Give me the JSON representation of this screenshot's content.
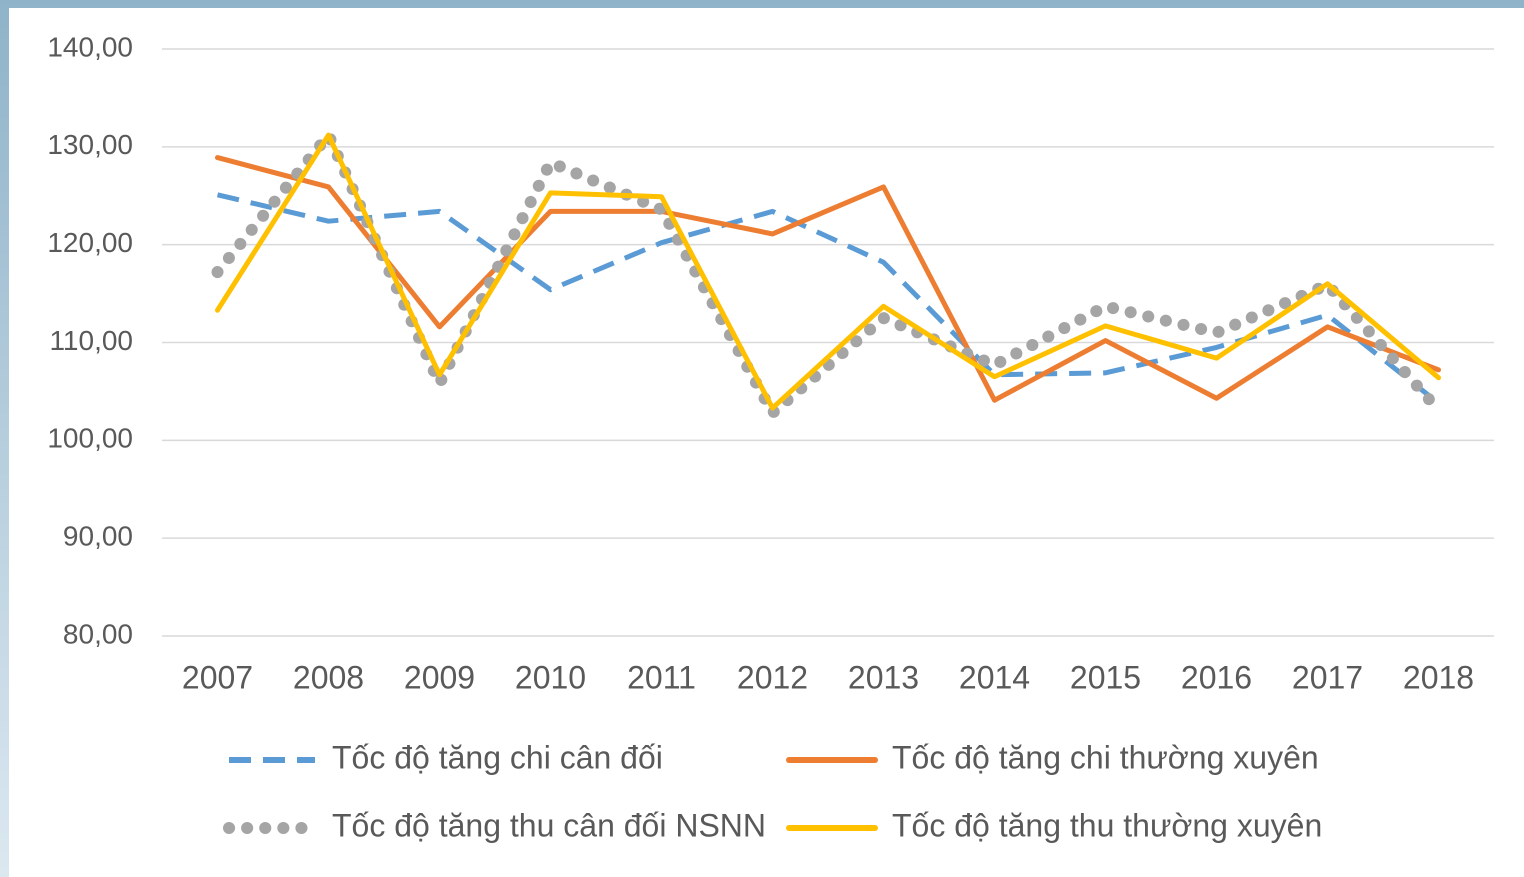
{
  "chart_data": {
    "type": "line",
    "categories": [
      "2007",
      "2008",
      "2009",
      "2010",
      "2011",
      "2012",
      "2013",
      "2014",
      "2015",
      "2016",
      "2017",
      "2018"
    ],
    "series": [
      {
        "name": "Tốc độ tăng chi cân đối",
        "color": "#5b9bd5",
        "style": "dashed",
        "values": [
          125.1,
          122.4,
          123.4,
          115.4,
          120.2,
          123.4,
          118.2,
          106.7,
          106.9,
          109.5,
          112.8,
          103.8
        ]
      },
      {
        "name": "Tốc độ tăng chi thường xuyên",
        "color": "#ed7d31",
        "style": "solid",
        "values": [
          128.9,
          125.9,
          111.6,
          123.4,
          123.4,
          121.1,
          125.9,
          104.1,
          110.2,
          104.3,
          111.6,
          107.2
        ]
      },
      {
        "name": "Tốc độ tăng thu cân đối NSNN",
        "color": "#a5a5a5",
        "style": "dotted",
        "values": [
          117.2,
          131.2,
          105.8,
          128.4,
          123.6,
          102.8,
          112.5,
          107.7,
          113.7,
          111.0,
          115.9,
          103.1
        ]
      },
      {
        "name": "Tốc độ tăng thu thường xuyên",
        "color": "#ffc000",
        "style": "solid",
        "values": [
          113.3,
          131.2,
          106.7,
          125.3,
          124.9,
          103.3,
          113.7,
          106.5,
          111.7,
          108.4,
          116.0,
          106.4
        ]
      }
    ],
    "ylim": [
      80,
      140
    ],
    "yticks": [
      {
        "value": 80,
        "label": "80,00"
      },
      {
        "value": 90,
        "label": "90,00"
      },
      {
        "value": 100,
        "label": "100,00"
      },
      {
        "value": 110,
        "label": "110,00"
      },
      {
        "value": 120,
        "label": "120,00"
      },
      {
        "value": 130,
        "label": "130,00"
      },
      {
        "value": 140,
        "label": "140,00"
      }
    ],
    "grid": true,
    "legend": "bottom"
  }
}
